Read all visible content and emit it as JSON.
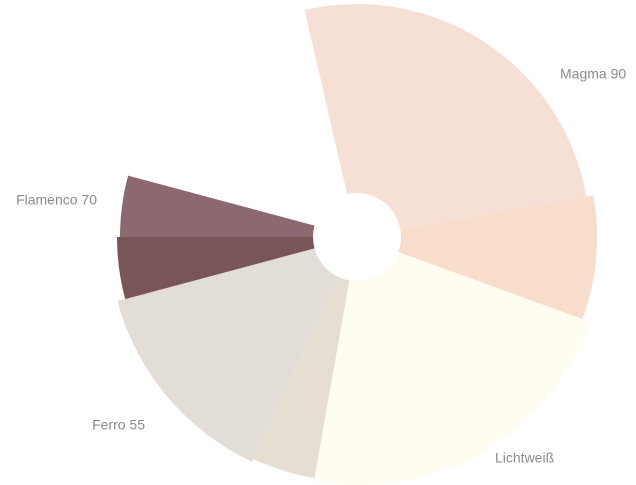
{
  "chart_data": {
    "type": "rose",
    "categories": [
      "Magma 90",
      null,
      "Lichtweiß",
      null,
      "Ferro 55",
      null,
      "Flamenco 70"
    ],
    "values": [
      93,
      30,
      80,
      15,
      50,
      15,
      15
    ],
    "radii": [
      233,
      240,
      248,
      245,
      248,
      240,
      237
    ],
    "colors": [
      "#f6e0d5",
      "#f8ddcc",
      "#fffcf0",
      "#e6ded3",
      "#e2ddd7",
      "#7a5558",
      "#8c6870"
    ]
  }
}
